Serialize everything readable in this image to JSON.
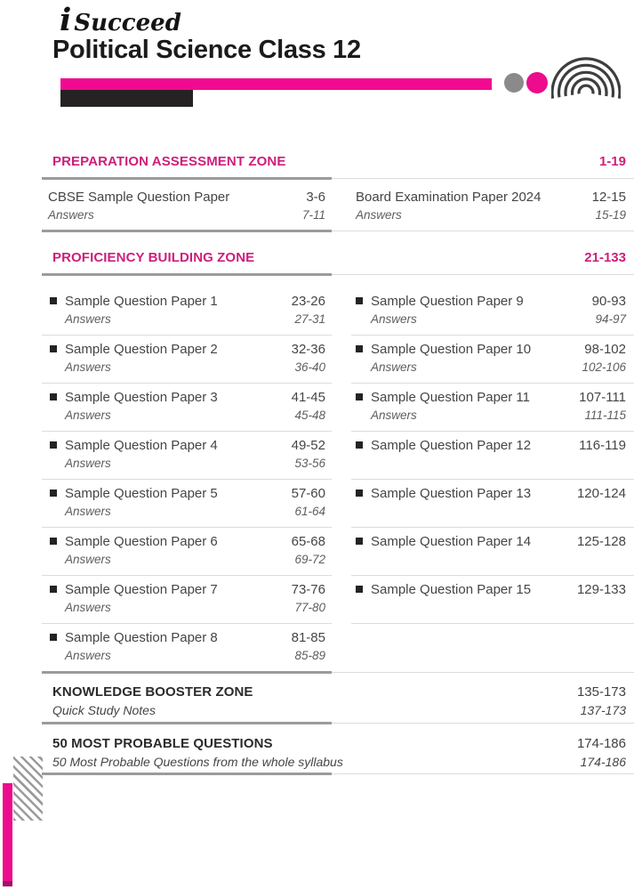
{
  "header": {
    "brand_i": "i",
    "brand_name": "Succeed",
    "book_title": "Political Science Class 12"
  },
  "icons": {
    "square_bullet": "■",
    "gray_dot": "●",
    "pink_dot": "●",
    "arcs": "concentric-arcs"
  },
  "colors": {
    "accent_pink": "#f10a90",
    "deco_pink": "#ec0c8c",
    "heading_pink": "#ce1e7c",
    "bar_black": "#262223",
    "dot_gray": "#8a8a8a",
    "divider_thick": "#9b9b9b",
    "divider_thin": "#dcdcdc",
    "text_dark": "#454545",
    "text_mid": "#5e5e5e",
    "heading_dark": "#2b2b2b"
  },
  "sections": {
    "preparation": {
      "heading": "PREPARATION ASSESSMENT ZONE",
      "pages": "1-19",
      "entries": [
        {
          "title": "CBSE Sample Question Paper",
          "pages": "3-6",
          "answers_label": "Answers",
          "answers_pages": "7-11"
        },
        {
          "title": "Board Examination Paper 2024",
          "pages": "12-15",
          "answers_label": "Answers",
          "answers_pages": "15-19"
        }
      ]
    },
    "proficiency": {
      "heading": "PROFICIENCY BUILDING ZONE",
      "pages": "21-133",
      "left": [
        {
          "title": "Sample Question Paper 1",
          "pages": "23-26",
          "answers_label": "Answers",
          "answers_pages": "27-31"
        },
        {
          "title": "Sample Question Paper 2",
          "pages": "32-36",
          "answers_label": "Answers",
          "answers_pages": "36-40"
        },
        {
          "title": "Sample Question Paper 3",
          "pages": "41-45",
          "answers_label": "Answers",
          "answers_pages": "45-48"
        },
        {
          "title": "Sample Question Paper 4",
          "pages": "49-52",
          "answers_label": "Answers",
          "answers_pages": "53-56"
        },
        {
          "title": "Sample Question Paper 5",
          "pages": "57-60",
          "answers_label": "Answers",
          "answers_pages": "61-64"
        },
        {
          "title": "Sample Question Paper 6",
          "pages": "65-68",
          "answers_label": "Answers",
          "answers_pages": "69-72"
        },
        {
          "title": "Sample Question Paper 7",
          "pages": "73-76",
          "answers_label": "Answers",
          "answers_pages": "77-80"
        },
        {
          "title": "Sample Question Paper 8",
          "pages": "81-85",
          "answers_label": "Answers",
          "answers_pages": "85-89"
        }
      ],
      "right": [
        {
          "title": "Sample Question Paper 9",
          "pages": "90-93",
          "answers_label": "Answers",
          "answers_pages": "94-97"
        },
        {
          "title": "Sample Question Paper 10",
          "pages": "98-102",
          "answers_label": "Answers",
          "answers_pages": "102-106"
        },
        {
          "title": "Sample Question Paper 11",
          "pages": "107-111",
          "answers_label": "Answers",
          "answers_pages": "111-115"
        },
        {
          "title": "Sample Question Paper 12",
          "pages": "116-119"
        },
        {
          "title": "Sample Question Paper 13",
          "pages": "120-124"
        },
        {
          "title": "Sample Question Paper 14",
          "pages": "125-128"
        },
        {
          "title": "Sample Question Paper 15",
          "pages": "129-133"
        }
      ]
    },
    "knowledge_booster": {
      "heading": "KNOWLEDGE BOOSTER ZONE",
      "pages": "135-173",
      "subtitle": "Quick Study Notes",
      "subtitle_pages": "137-173"
    },
    "most_probable": {
      "heading": "50 MOST PROBABLE QUESTIONS",
      "pages": "174-186",
      "subtitle": "50 Most Probable Questions from the whole syllabus",
      "subtitle_pages": "174-186"
    }
  }
}
